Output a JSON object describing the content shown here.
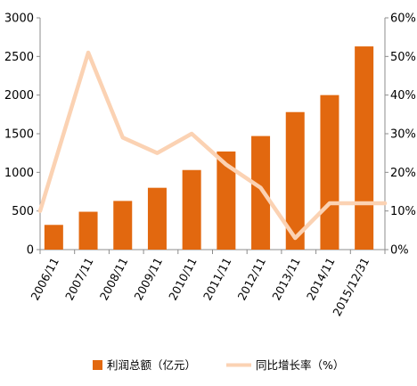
{
  "chart_data": {
    "type": "bar",
    "categories": [
      "2006/11",
      "2007/11",
      "2008/11",
      "2009/11",
      "2010/11",
      "2011/11",
      "2012/11",
      "2013/11",
      "2014/11",
      "2015/12/31"
    ],
    "series": [
      {
        "name": "利润总额（亿元）",
        "type": "bar",
        "axis": "left",
        "color": "#e2680f",
        "values": [
          320,
          490,
          630,
          800,
          1030,
          1270,
          1470,
          1780,
          2000,
          2630
        ]
      },
      {
        "name": "同比增长率（%）",
        "type": "line",
        "axis": "right",
        "color": "#fbd2b3",
        "values": [
          10,
          51,
          29,
          25,
          30,
          22,
          16,
          3,
          12,
          12
        ]
      }
    ],
    "ylim_left": [
      0,
      3000
    ],
    "yticks_left": [
      "0",
      "500",
      "1000",
      "1500",
      "2000",
      "2500",
      "3000"
    ],
    "ylim_right": [
      0,
      60
    ],
    "yticks_right": [
      "0%",
      "10%",
      "20%",
      "30%",
      "40%",
      "50%",
      "60%"
    ],
    "grid": false,
    "legend_position": "bottom"
  }
}
